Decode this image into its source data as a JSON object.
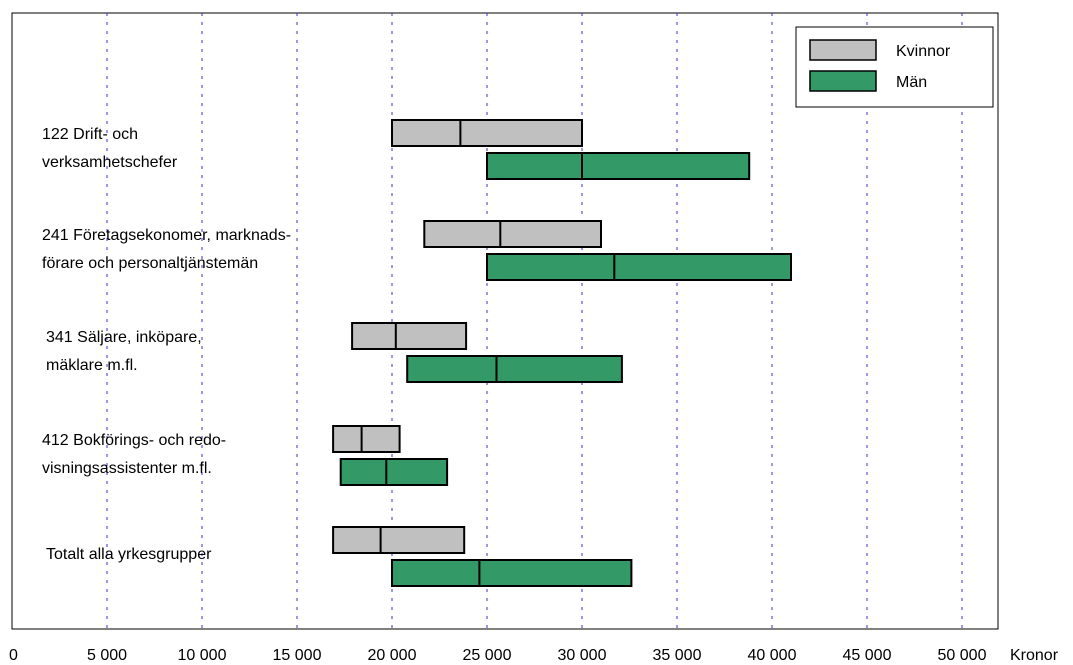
{
  "chart_data": {
    "type": "box",
    "orientation": "horizontal",
    "xlim": [
      0,
      52000
    ],
    "x_ticks": [
      0,
      5000,
      10000,
      15000,
      20000,
      25000,
      30000,
      35000,
      40000,
      45000,
      50000
    ],
    "x_tick_labels": [
      "0",
      "5 000",
      "10 000",
      "15 000",
      "20 000",
      "25 000",
      "30 000",
      "35 000",
      "40 000",
      "45 000",
      "50 000"
    ],
    "xlabel": "Kronor",
    "grid": "vertical dotted",
    "legend_position": "top-right",
    "colors": {
      "Kvinnor": "#c0c0c0",
      "Män": "#339966",
      "grid": "#3333cc"
    },
    "series": [
      {
        "name": "Kvinnor"
      },
      {
        "name": "Män"
      }
    ],
    "categories": [
      {
        "label_lines": [
          "122 Drift- och",
          "verksamhetschefer"
        ],
        "Kvinnor": {
          "low": 20000,
          "median": 23600,
          "high": 30000
        },
        "Män": {
          "low": 25000,
          "median": 30000,
          "high": 38800
        }
      },
      {
        "label_lines": [
          "241 Företagsekonomer, marknads-",
          "förare och personaltjänstemän"
        ],
        "Kvinnor": {
          "low": 21700,
          "median": 25700,
          "high": 31000
        },
        "Män": {
          "low": 25000,
          "median": 31700,
          "high": 41000
        }
      },
      {
        "label_lines": [
          "341 Säljare, inköpare,",
          "mäklare m.fl."
        ],
        "Kvinnor": {
          "low": 17900,
          "median": 20200,
          "high": 23900
        },
        "Män": {
          "low": 20800,
          "median": 25500,
          "high": 32100
        }
      },
      {
        "label_lines": [
          "412 Bokförings- och redo-",
          "visningsassistenter m.fl."
        ],
        "Kvinnor": {
          "low": 16900,
          "median": 18400,
          "high": 20400
        },
        "Män": {
          "low": 17300,
          "median": 19700,
          "high": 22900
        }
      },
      {
        "label_lines": [
          "Totalt alla yrkesgrupper"
        ],
        "Kvinnor": {
          "low": 16900,
          "median": 19400,
          "high": 23800
        },
        "Män": {
          "low": 20000,
          "median": 24600,
          "high": 32600
        }
      }
    ]
  }
}
